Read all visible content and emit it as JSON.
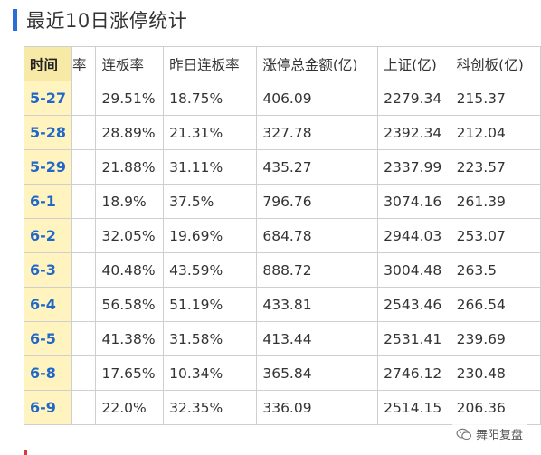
{
  "title": "最近10日涨停统计",
  "table": {
    "headers": [
      "时间",
      "率",
      "连板率",
      "昨日连板率",
      "涨停总金额(亿)",
      "上证(亿)",
      "科创板(亿)"
    ],
    "rows": [
      {
        "date": "5-27",
        "partial": "",
        "lianban": "29.51%",
        "zuori": "18.75%",
        "total": "406.09",
        "sh": "2279.34",
        "kcb": "215.37"
      },
      {
        "date": "5-28",
        "partial": "",
        "lianban": "28.89%",
        "zuori": "21.31%",
        "total": "327.78",
        "sh": "2392.34",
        "kcb": "212.04"
      },
      {
        "date": "5-29",
        "partial": "",
        "lianban": "21.88%",
        "zuori": "31.11%",
        "total": "435.27",
        "sh": "2337.99",
        "kcb": "223.57"
      },
      {
        "date": "6-1",
        "partial": "",
        "lianban": "18.9%",
        "zuori": "37.5%",
        "total": "796.76",
        "sh": "3074.16",
        "kcb": "261.39"
      },
      {
        "date": "6-2",
        "partial": "",
        "lianban": "32.05%",
        "zuori": "19.69%",
        "total": "684.78",
        "sh": "2944.03",
        "kcb": "253.07"
      },
      {
        "date": "6-3",
        "partial": "",
        "lianban": "40.48%",
        "zuori": "43.59%",
        "total": "888.72",
        "sh": "3004.48",
        "kcb": "263.5"
      },
      {
        "date": "6-4",
        "partial": "",
        "lianban": "56.58%",
        "zuori": "51.19%",
        "total": "433.81",
        "sh": "2543.46",
        "kcb": "266.54"
      },
      {
        "date": "6-5",
        "partial": "",
        "lianban": "41.38%",
        "zuori": "31.58%",
        "total": "413.44",
        "sh": "2531.41",
        "kcb": "239.69"
      },
      {
        "date": "6-8",
        "partial": "",
        "lianban": "17.65%",
        "zuori": "10.34%",
        "total": "365.84",
        "sh": "2746.12",
        "kcb": "230.48"
      },
      {
        "date": "6-9",
        "partial": "",
        "lianban": "22.0%",
        "zuori": "32.35%",
        "total": "336.09",
        "sh": "2514.15",
        "kcb": "206.36"
      }
    ]
  },
  "watermark": {
    "text": "舞阳复盘",
    "icon": "wechat-icon"
  },
  "colors": {
    "accent": "#2a6fd6",
    "date_text": "#1f67c9",
    "date_bg": "#fff3bf",
    "header_date_bg": "#f7e9a6",
    "border": "#cfcfcf"
  }
}
